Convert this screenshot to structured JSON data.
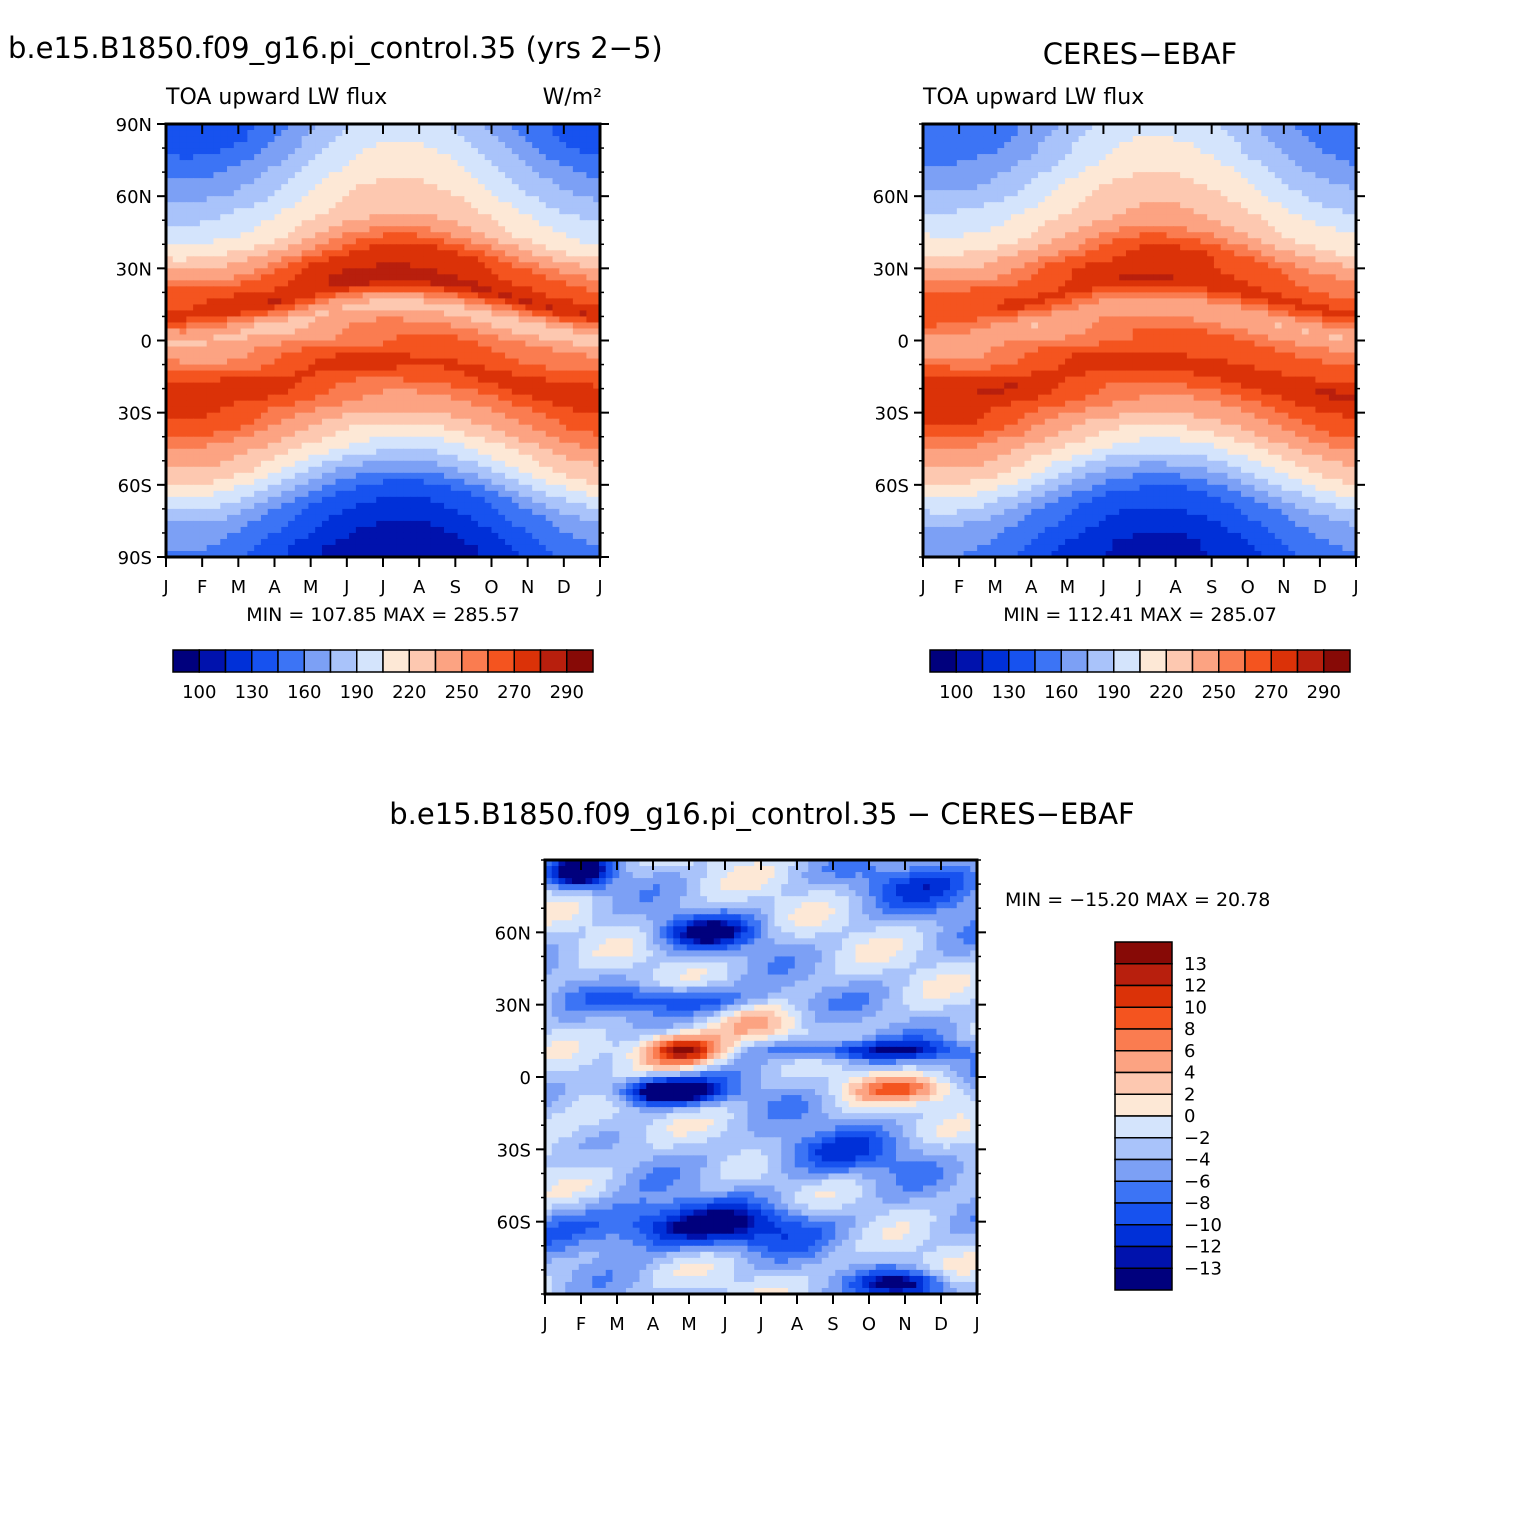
{
  "figure": {
    "panels": [
      {
        "id": "model",
        "title": "b.e15.B1850.f09_g16.pi_control.35 (yrs 2−5)",
        "left_label": "TOA upward LW flux",
        "right_label": "W/m²",
        "minmax": "MIN = 107.85 MAX = 285.57"
      },
      {
        "id": "obs",
        "title": "CERES−EBAF",
        "left_label": "TOA upward LW flux",
        "right_label": "",
        "minmax": "MIN = 112.41 MAX = 285.07"
      },
      {
        "id": "diff",
        "title": "b.e15.B1850.f09_g16.pi_control.35 − CERES−EBAF",
        "minmax": "MIN = −15.20 MAX =   20.78"
      }
    ],
    "abs_colorbar": {
      "colors": [
        "#00007d",
        "#0012ad",
        "#0030d8",
        "#1752ef",
        "#3c74f5",
        "#7ca0f5",
        "#a9c3fa",
        "#d4e4fc",
        "#fde8d6",
        "#fdc8b0",
        "#fca382",
        "#fa7c50",
        "#f4541f",
        "#db3208",
        "#b81f0d",
        "#870a06"
      ],
      "labels": [
        "100",
        "130",
        "160",
        "190",
        "220",
        "250",
        "270",
        "290"
      ]
    },
    "diff_colorbar": {
      "colors": [
        "#870a06",
        "#b81f0d",
        "#db3208",
        "#f4541f",
        "#fa7c50",
        "#fca382",
        "#fdc8b0",
        "#fde8d6",
        "#d4e4fc",
        "#a9c3fa",
        "#7ca0f5",
        "#3c74f5",
        "#1752ef",
        "#0030d8",
        "#0012ad",
        "#00007d"
      ],
      "labels": [
        "13",
        "12",
        "10",
        "8",
        "6",
        "4",
        "2",
        "0",
        "−2",
        "−4",
        "−6",
        "−8",
        "−10",
        "−12",
        "−13"
      ]
    }
  },
  "chart_data": [
    {
      "type": "heatmap",
      "title": "b.e15.B1850.f09_g16.pi_control.35 (yrs 2−5)",
      "variable": "TOA upward LW flux",
      "units": "W/m²",
      "x_ticks": [
        "J",
        "F",
        "M",
        "A",
        "M",
        "J",
        "J",
        "A",
        "S",
        "O",
        "N",
        "D",
        "J"
      ],
      "y_ticks": [
        "90N",
        "60N",
        "30N",
        "0",
        "30S",
        "60S",
        "90S"
      ],
      "ylim": [
        -90,
        90
      ],
      "levels": [
        100,
        115,
        130,
        145,
        160,
        175,
        190,
        205,
        220,
        235,
        250,
        260,
        270,
        280,
        290
      ],
      "min": 107.85,
      "max": 285.57,
      "field": {
        "bands": [
          [
            -90,
            125
          ],
          [
            -70,
            150
          ],
          [
            -50,
            210
          ],
          [
            -30,
            255
          ],
          [
            -15,
            275
          ],
          [
            0,
            248
          ],
          [
            8,
            228
          ],
          [
            18,
            280
          ],
          [
            30,
            265
          ],
          [
            45,
            220
          ],
          [
            60,
            200
          ],
          [
            75,
            180
          ],
          [
            90,
            160
          ]
        ],
        "seasonal_amp": [
          [
            -90,
            -22
          ],
          [
            -60,
            -16
          ],
          [
            -30,
            -6
          ],
          [
            0,
            0
          ],
          [
            30,
            8
          ],
          [
            60,
            18
          ],
          [
            90,
            28
          ]
        ],
        "itcz_shift": 8
      }
    },
    {
      "type": "heatmap",
      "title": "CERES−EBAF",
      "variable": "TOA upward LW flux",
      "x_ticks": [
        "J",
        "F",
        "M",
        "A",
        "M",
        "J",
        "J",
        "A",
        "S",
        "O",
        "N",
        "D",
        "J"
      ],
      "y_ticks": [
        "60N",
        "30N",
        "0",
        "30S",
        "60S"
      ],
      "ylim": [
        -90,
        90
      ],
      "levels": [
        100,
        115,
        130,
        145,
        160,
        175,
        190,
        205,
        220,
        235,
        250,
        260,
        270,
        280,
        290
      ],
      "min": 112.41,
      "max": 285.07,
      "field": {
        "bands": [
          [
            -90,
            130
          ],
          [
            -70,
            155
          ],
          [
            -50,
            212
          ],
          [
            -30,
            258
          ],
          [
            -15,
            277
          ],
          [
            0,
            252
          ],
          [
            8,
            238
          ],
          [
            18,
            273
          ],
          [
            30,
            262
          ],
          [
            45,
            225
          ],
          [
            60,
            205
          ],
          [
            75,
            185
          ],
          [
            90,
            170
          ]
        ],
        "seasonal_amp": [
          [
            -90,
            -20
          ],
          [
            -60,
            -14
          ],
          [
            -30,
            -6
          ],
          [
            0,
            0
          ],
          [
            30,
            8
          ],
          [
            60,
            16
          ],
          [
            90,
            24
          ]
        ],
        "itcz_shift": 8
      }
    },
    {
      "type": "heatmap",
      "title": "b.e15.B1850.f09_g16.pi_control.35 − CERES−EBAF",
      "x_ticks": [
        "J",
        "F",
        "M",
        "A",
        "M",
        "J",
        "J",
        "A",
        "S",
        "O",
        "N",
        "D",
        "J"
      ],
      "y_ticks": [
        "60N",
        "30N",
        "0",
        "30S",
        "60S"
      ],
      "ylim": [
        -90,
        90
      ],
      "levels": [
        -13,
        -12,
        -10,
        -8,
        -6,
        -4,
        -2,
        0,
        2,
        4,
        6,
        8,
        10,
        12,
        13
      ],
      "min": -15.2,
      "max": 20.78,
      "features": [
        {
          "month": 3.8,
          "lat": 11,
          "value": 18,
          "sd_month": 0.9,
          "sd_lat": 5
        },
        {
          "month": 3.4,
          "lat": -6,
          "value": -17,
          "sd_month": 1.0,
          "sd_lat": 4
        },
        {
          "month": 9.9,
          "lat": -5,
          "value": 9,
          "sd_month": 1.2,
          "sd_lat": 4
        },
        {
          "month": 8.9,
          "lat": 11,
          "value": -9,
          "sd_month": 2.0,
          "sd_lat": 3
        },
        {
          "month": 1.0,
          "lat": 85,
          "value": -14,
          "sd_month": 0.6,
          "sd_lat": 5
        },
        {
          "month": 4.5,
          "lat": 60,
          "value": -10,
          "sd_month": 1.0,
          "sd_lat": 5
        },
        {
          "month": 3.8,
          "lat": 32,
          "value": -8,
          "sd_month": 1.5,
          "sd_lat": 4
        },
        {
          "month": 5.9,
          "lat": 22,
          "value": 5,
          "sd_month": 0.8,
          "sd_lat": 5
        },
        {
          "month": 4.0,
          "lat": -62,
          "value": -11,
          "sd_month": 2.5,
          "sd_lat": 7
        },
        {
          "month": 10.0,
          "lat": -86,
          "value": -12,
          "sd_month": 0.8,
          "sd_lat": 4
        },
        {
          "month": 1.0,
          "lat": -20,
          "value": 3,
          "sd_month": 1.0,
          "sd_lat": 10
        },
        {
          "month": 8.0,
          "lat": -32,
          "value": -6,
          "sd_month": 1.5,
          "sd_lat": 7
        },
        {
          "month": 11.0,
          "lat": 80,
          "value": -7,
          "sd_month": 1.5,
          "sd_lat": 8
        }
      ]
    }
  ]
}
